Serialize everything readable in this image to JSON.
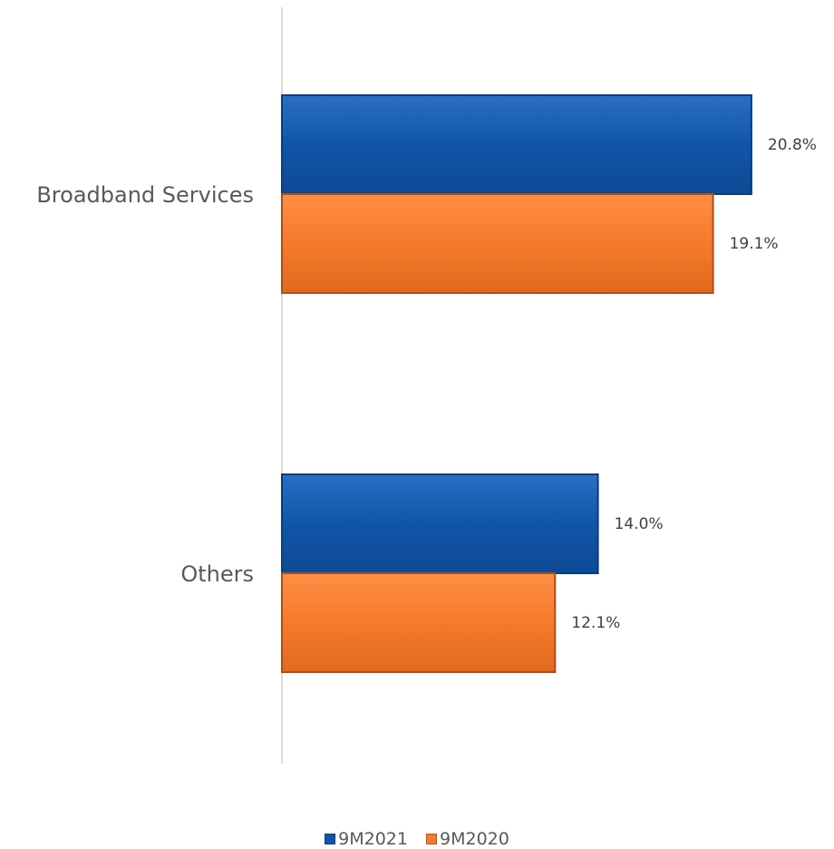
{
  "chart_data": {
    "type": "bar",
    "orientation": "horizontal",
    "categories": [
      "Broadband Services",
      "Others"
    ],
    "series": [
      {
        "name": "9M2021",
        "values": [
          20.8,
          14.0
        ],
        "labels": [
          "20.8%",
          "14.0%"
        ],
        "color": "#1155A8"
      },
      {
        "name": "9M2020",
        "values": [
          19.1,
          12.1
        ],
        "labels": [
          "19.1%",
          "12.1%"
        ],
        "color": "#F57A2C"
      }
    ],
    "xlim": [
      0,
      25
    ],
    "grid": false,
    "legend": "bottom"
  }
}
